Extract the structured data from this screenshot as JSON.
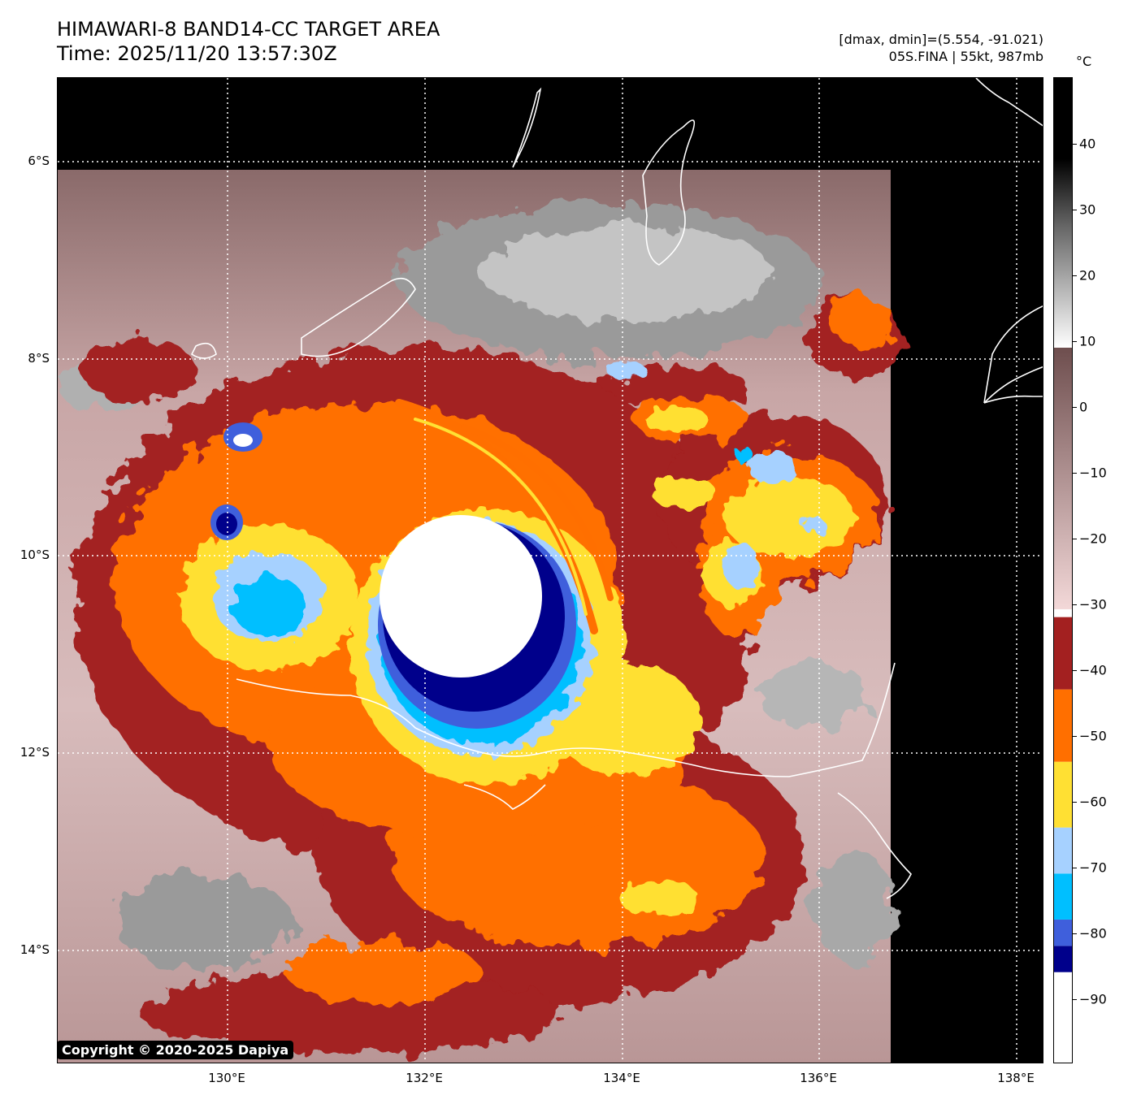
{
  "header": {
    "title_line1": "HIMAWARI-8 BAND14-CC TARGET AREA",
    "title_line2": "Time: 2025/11/20 13:57:30Z",
    "info_line1": "[dmax, dmin]=(5.554, -91.021)",
    "info_line2": "05S.FINA | 55kt, 987mb"
  },
  "map": {
    "lat_labels": [
      "6°S",
      "8°S",
      "10°S",
      "12°S",
      "14°S"
    ],
    "lon_labels": [
      "130°E",
      "132°E",
      "134°E",
      "136°E",
      "138°E"
    ],
    "background_color": "#000000",
    "copyright": "Copyright © 2020-2025 Dapiya"
  },
  "colorbar": {
    "unit": "°C",
    "labels": [
      "40",
      "30",
      "20",
      "10",
      "0",
      "−10",
      "−20",
      "−30",
      "−40",
      "−50",
      "−60",
      "−70",
      "−80",
      "−90"
    ],
    "bands": [
      {
        "color": "#ffffff",
        "from": -100,
        "to": -86
      },
      {
        "color": "#00008b",
        "from": -86,
        "to": -82
      },
      {
        "color": "#3f5fdc",
        "from": -82,
        "to": -78
      },
      {
        "color": "#00bfff",
        "from": -78,
        "to": -71
      },
      {
        "color": "#a6d1ff",
        "from": -71,
        "to": -64
      },
      {
        "color": "#ffe033",
        "from": -64,
        "to": -54
      },
      {
        "color": "#ff6f00",
        "from": -54,
        "to": -43
      },
      {
        "color": "#a32020",
        "from": -43,
        "to": -32
      }
    ]
  }
}
